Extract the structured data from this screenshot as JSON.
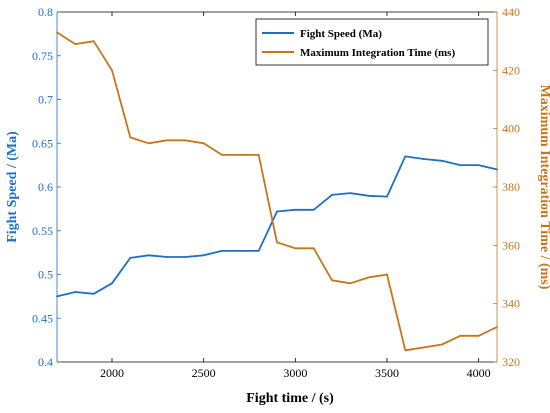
{
  "chart_data": {
    "type": "line",
    "xlabel": "Fight time / (s)",
    "ylabel_left": "Fight Speed / (Ma)",
    "ylabel_right": "Maximum Integration Time / (ms)",
    "xlim": [
      1700,
      4100
    ],
    "ylim_left": [
      0.4,
      0.8
    ],
    "ylim_right": [
      320,
      440
    ],
    "x_ticks": [
      "2000",
      "2500",
      "3000",
      "3500",
      "4000"
    ],
    "y_left_ticks": [
      "0.4",
      "0.45",
      "0.5",
      "0.55",
      "0.6",
      "0.65",
      "0.7",
      "0.75",
      "0.8"
    ],
    "y_right_ticks": [
      "320",
      "340",
      "360",
      "380",
      "400",
      "420",
      "440"
    ],
    "grid": false,
    "legend_position": "top-right",
    "series": [
      {
        "name": "Fight Speed (Ma)",
        "axis": "left",
        "color": "#1f6fc6",
        "x": [
          1700,
          1800,
          1900,
          2000,
          2100,
          2200,
          2300,
          2400,
          2500,
          2600,
          2700,
          2800,
          2900,
          3000,
          3100,
          3200,
          3300,
          3400,
          3500,
          3600,
          3700,
          3800,
          3900,
          4000,
          4100
        ],
        "y": [
          0.475,
          0.48,
          0.478,
          0.49,
          0.519,
          0.522,
          0.52,
          0.52,
          0.522,
          0.527,
          0.527,
          0.527,
          0.572,
          0.574,
          0.574,
          0.591,
          0.593,
          0.59,
          0.589,
          0.635,
          0.632,
          0.63,
          0.625,
          0.625,
          0.62
        ]
      },
      {
        "name": "Maximum Integration Time (ms)",
        "axis": "right",
        "color": "#c8751a",
        "x": [
          1700,
          1800,
          1900,
          2000,
          2100,
          2200,
          2300,
          2400,
          2500,
          2600,
          2700,
          2800,
          2900,
          3000,
          3100,
          3200,
          3300,
          3400,
          3500,
          3600,
          3700,
          3800,
          3900,
          4000,
          4100
        ],
        "y": [
          433,
          429,
          430,
          420,
          397,
          395,
          396,
          396,
          395,
          391,
          391,
          391,
          361,
          359,
          359,
          348,
          347,
          349,
          350,
          324,
          325,
          326,
          329,
          329,
          332
        ]
      }
    ]
  }
}
